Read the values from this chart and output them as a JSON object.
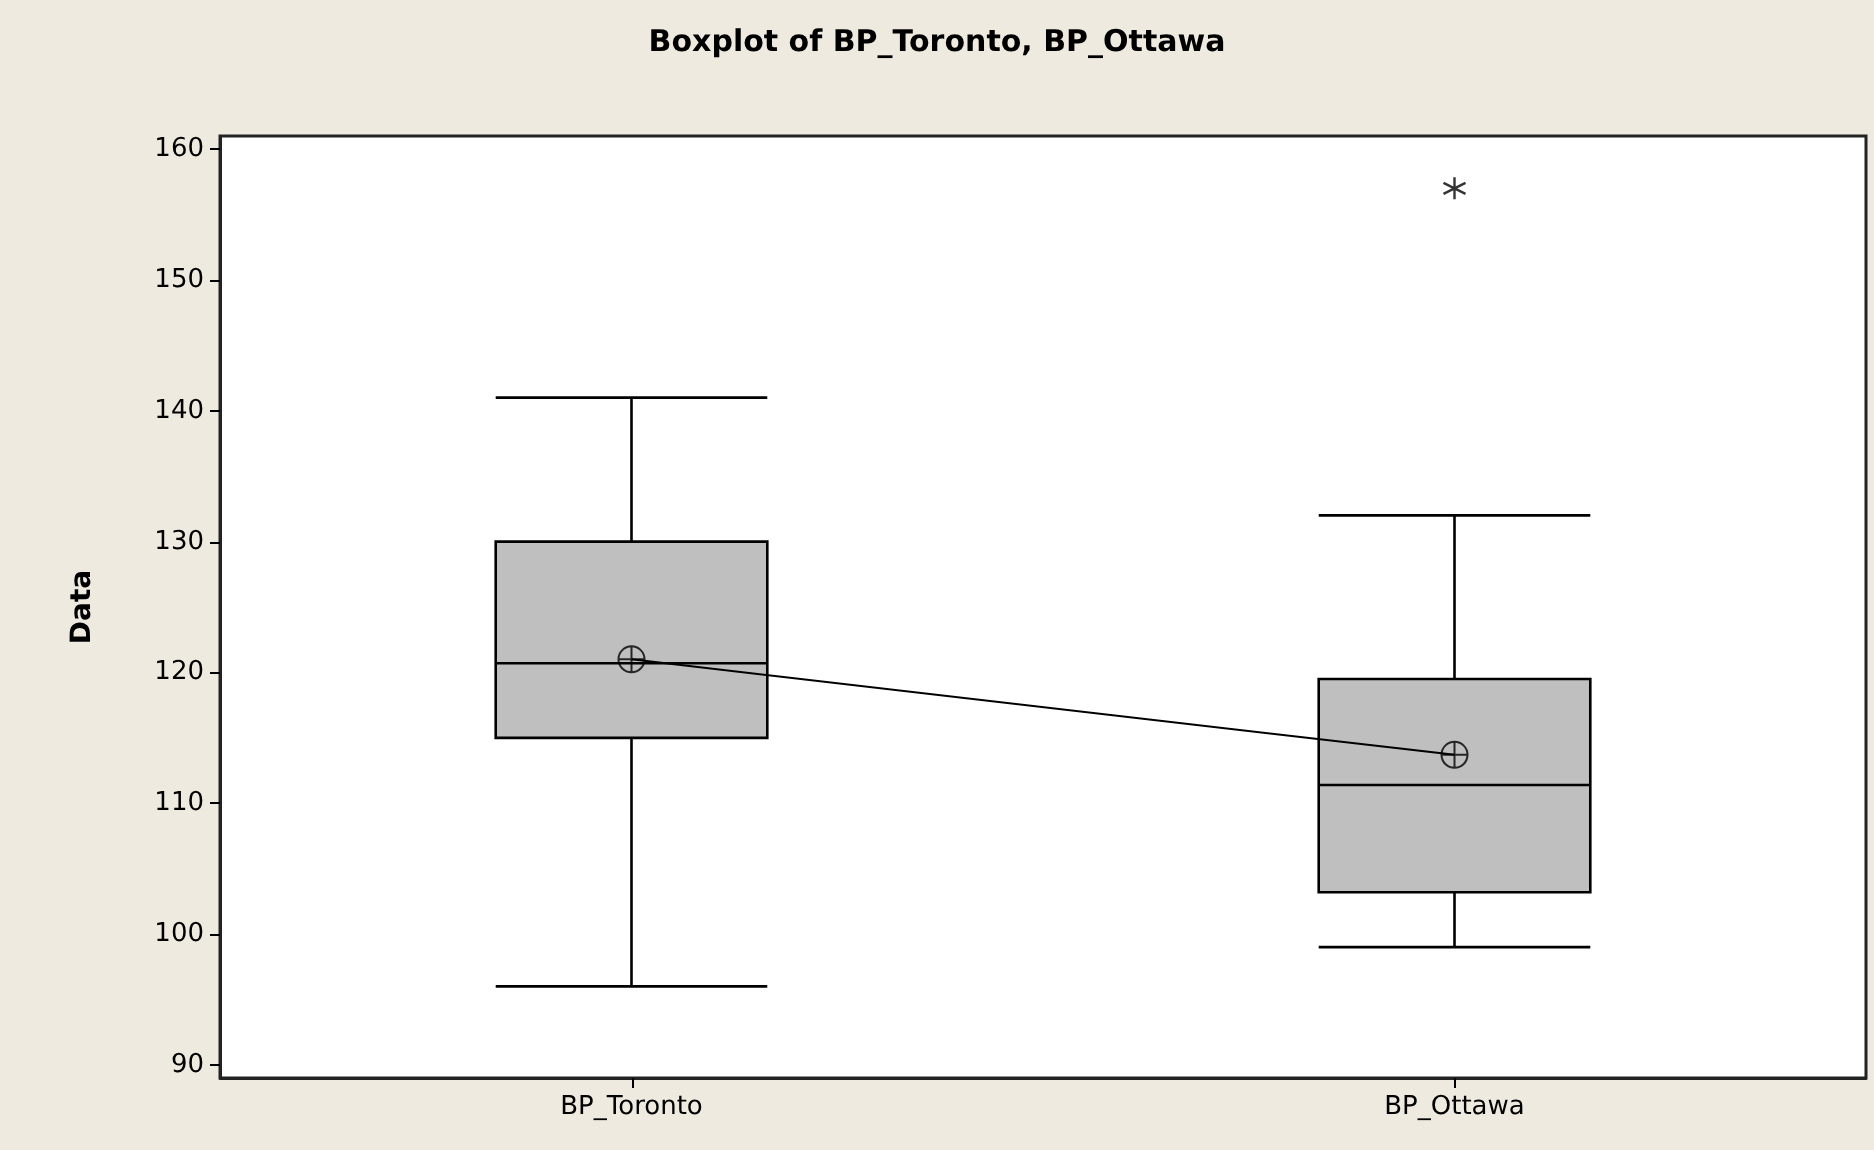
{
  "chart_data": {
    "type": "box",
    "title": "Boxplot of BP_Toronto, BP_Ottawa",
    "ylabel": "Data",
    "categories": [
      "BP_Toronto",
      "BP_Ottawa"
    ],
    "color": "#bfbfbf",
    "boxes": [
      {
        "low": 96,
        "q1": 115,
        "median": 120.7,
        "q3": 130,
        "high": 141,
        "mean": 121
      },
      {
        "low": 99,
        "q1": 103.2,
        "median": 111.4,
        "q3": 119.5,
        "high": 132,
        "mean": 113.7,
        "outliers": [
          157
        ]
      }
    ],
    "series": [
      {
        "type": "line",
        "color": "#000000",
        "values": [
          121,
          113.7
        ]
      }
    ],
    "ylim": [
      89,
      161
    ],
    "yticks": [
      90,
      100,
      110,
      120,
      130,
      140,
      150,
      160
    ],
    "grid": false
  }
}
